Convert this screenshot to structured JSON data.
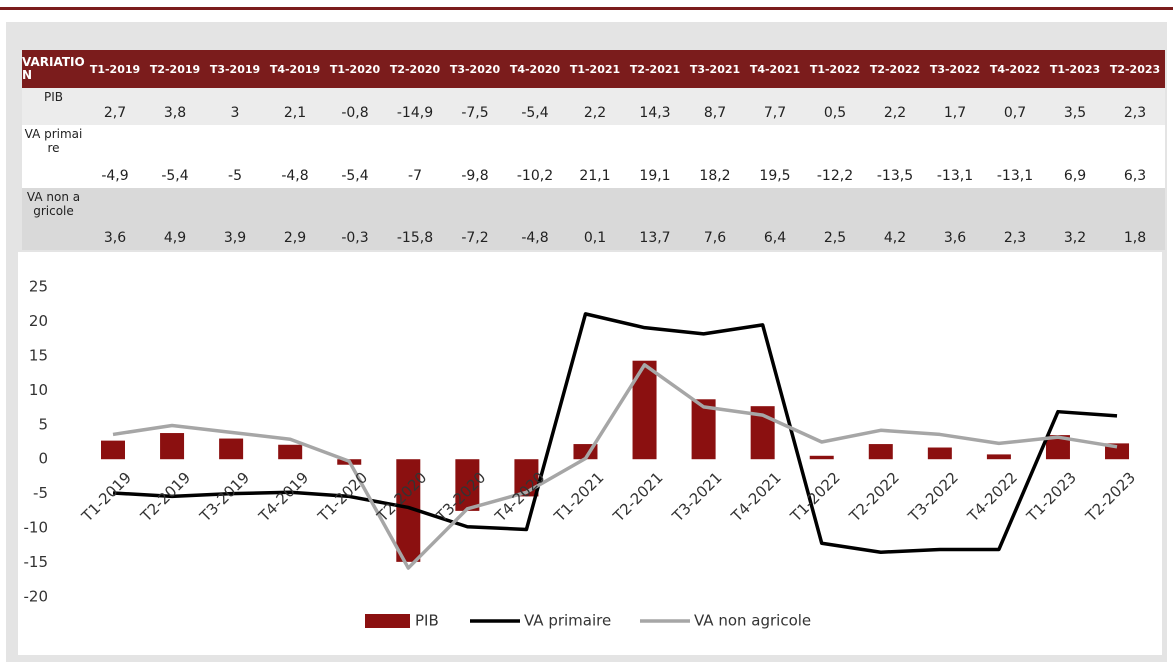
{
  "table": {
    "header": "VARIATION"
  },
  "chart_data": {
    "type": "bar_line",
    "categories": [
      "T1-2019",
      "T2-2019",
      "T3-2019",
      "T4-2019",
      "T1-2020",
      "T2-2020",
      "T3-2020",
      "T4-2020",
      "T1-2021",
      "T2-2021",
      "T3-2021",
      "T4-2021",
      "T1-2022",
      "T2-2022",
      "T3-2022",
      "T4-2022",
      "T1-2023",
      "T2-2023"
    ],
    "series": [
      {
        "name": "PIB",
        "kind": "bar",
        "color": "#8b1010",
        "values": [
          2.7,
          3.8,
          3,
          2.1,
          -0.8,
          -14.9,
          -7.5,
          -5.4,
          2.2,
          14.3,
          8.7,
          7.7,
          0.5,
          2.2,
          1.7,
          0.7,
          3.5,
          2.3
        ],
        "value_labels": [
          "2,7",
          "3,8",
          "3",
          "2,1",
          "-0,8",
          "-14,9",
          "-7,5",
          "-5,4",
          "2,2",
          "14,3",
          "8,7",
          "7,7",
          "0,5",
          "2,2",
          "1,7",
          "0,7",
          "3,5",
          "2,3"
        ]
      },
      {
        "name": "VA primaire",
        "kind": "line",
        "color": "#000000",
        "values": [
          -4.9,
          -5.4,
          -5,
          -4.8,
          -5.4,
          -7,
          -9.8,
          -10.2,
          21.1,
          19.1,
          18.2,
          19.5,
          -12.2,
          -13.5,
          -13.1,
          -13.1,
          6.9,
          6.3
        ],
        "value_labels": [
          "-4,9",
          "-5,4",
          "-5",
          "-4,8",
          "-5,4",
          "-7",
          "-9,8",
          "-10,2",
          "21,1",
          "19,1",
          "18,2",
          "19,5",
          "-12,2",
          "-13,5",
          "-13,1",
          "-13,1",
          "6,9",
          "6,3"
        ]
      },
      {
        "name": "VA non agricole",
        "kind": "line",
        "color": "#a6a6a6",
        "values": [
          3.6,
          4.9,
          3.9,
          2.9,
          -0.3,
          -15.8,
          -7.2,
          -4.8,
          0.1,
          13.7,
          7.6,
          6.4,
          2.5,
          4.2,
          3.6,
          2.3,
          3.2,
          1.8
        ],
        "value_labels": [
          "3,6",
          "4,9",
          "3,9",
          "2,9",
          "-0,3",
          "-15,8",
          "-7,2",
          "-4,8",
          "0,1",
          "13,7",
          "7,6",
          "6,4",
          "2,5",
          "4,2",
          "3,6",
          "2,3",
          "3,2",
          "1,8"
        ]
      }
    ],
    "ylim": [
      -20,
      25
    ],
    "yticks": [
      -20,
      -15,
      -10,
      -5,
      0,
      5,
      10,
      15,
      20,
      25
    ],
    "grid": false,
    "legend": "bottom"
  }
}
